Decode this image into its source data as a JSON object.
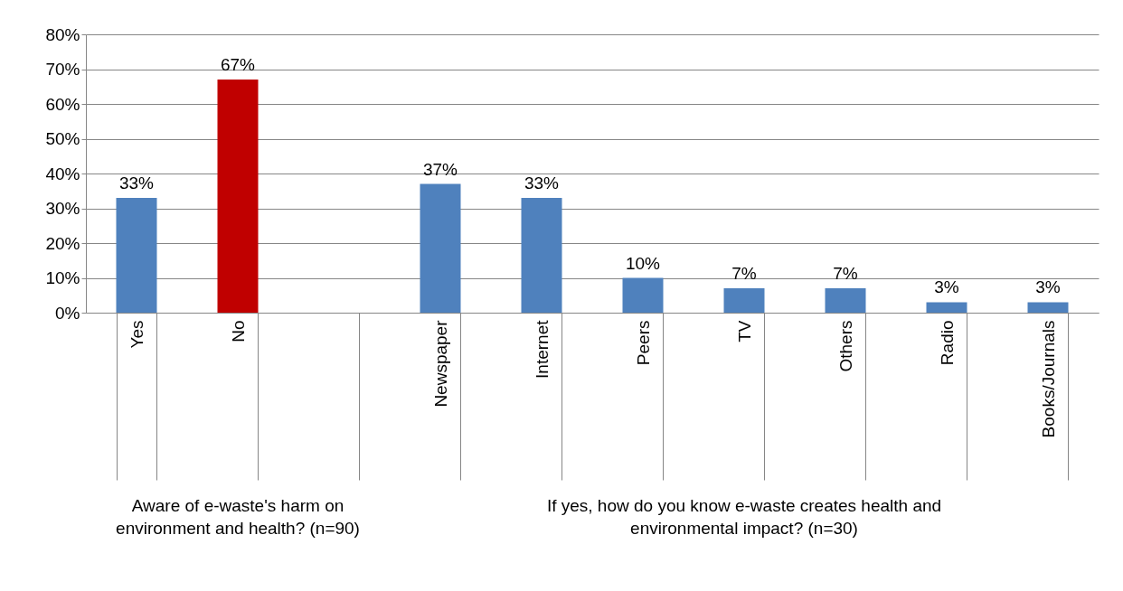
{
  "chart_data": {
    "type": "bar",
    "categories": [
      "Yes",
      "No",
      null,
      "Newspaper",
      "Internet",
      "Peers",
      "TV",
      "Others",
      "Radio",
      "Books/Journals"
    ],
    "values": [
      33,
      67,
      null,
      37,
      33,
      10,
      7,
      7,
      3,
      3
    ],
    "colors": [
      "#4f81bd",
      "#c00000",
      "#4f81bd",
      "#4f81bd",
      "#4f81bd",
      "#4f81bd",
      "#4f81bd",
      "#4f81bd",
      "#4f81bd",
      "#4f81bd"
    ],
    "value_labels": [
      "33%",
      "67%",
      null,
      "37%",
      "33%",
      "10%",
      "7%",
      "7%",
      "3%",
      "3%"
    ],
    "ylim": [
      0,
      80
    ],
    "yticks": [
      {
        "value": 0,
        "label": "0%"
      },
      {
        "value": 10,
        "label": "10%"
      },
      {
        "value": 20,
        "label": "20%"
      },
      {
        "value": 30,
        "label": "30%"
      },
      {
        "value": 40,
        "label": "40%"
      },
      {
        "value": 50,
        "label": "50%"
      },
      {
        "value": 60,
        "label": "60%"
      },
      {
        "value": 70,
        "label": "70%"
      },
      {
        "value": 80,
        "label": "80%"
      }
    ],
    "grid": "y",
    "annotations": [
      "Aware of e-waste's harm on environment and health? (n=90)",
      "If yes, how do you know e-waste creates health and environmental impact? (n=30)"
    ]
  }
}
